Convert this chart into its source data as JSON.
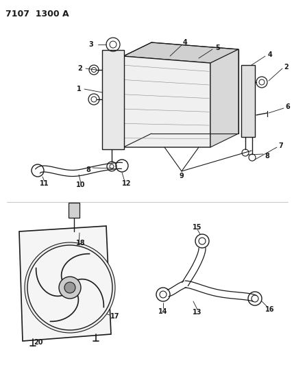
{
  "title": "7107  1300 A",
  "bg_color": "#ffffff",
  "line_color": "#1a1a1a",
  "title_fontsize": 9,
  "label_fontsize": 7,
  "figsize": [
    4.29,
    5.33
  ],
  "dpi": 100
}
